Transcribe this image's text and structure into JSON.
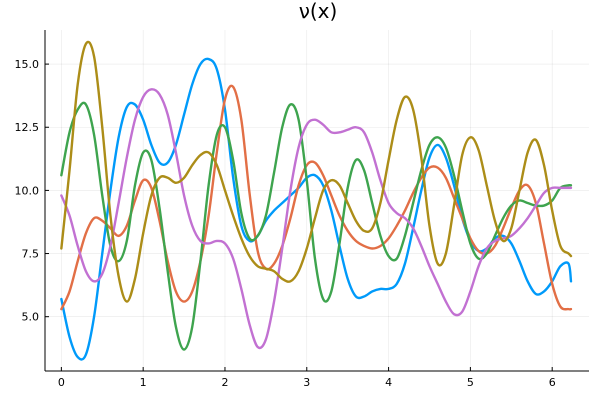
{
  "chart_data": {
    "type": "line",
    "title": "ν(x)",
    "xlabel": "",
    "ylabel": "",
    "xlim": [
      -0.2,
      6.45
    ],
    "ylim": [
      2.85,
      16.35
    ],
    "xticks": [
      0,
      1,
      2,
      3,
      4,
      5,
      6
    ],
    "xtick_labels": [
      "0",
      "1",
      "2",
      "3",
      "4",
      "5",
      "6"
    ],
    "yticks": [
      5.0,
      7.5,
      10.0,
      12.5,
      15.0
    ],
    "ytick_labels": [
      "5.0",
      "7.5",
      "10.0",
      "12.5",
      "15.0"
    ],
    "grid": true,
    "legend": "none",
    "series": [
      {
        "color": "#009AFA",
        "x": [
          0,
          0.1,
          0.2,
          0.3,
          0.4,
          0.5,
          0.6,
          0.7,
          0.8,
          0.9,
          1.0,
          1.1,
          1.2,
          1.3,
          1.4,
          1.5,
          1.6,
          1.7,
          1.8,
          1.9,
          2.0,
          2.1,
          2.2,
          2.3,
          2.4,
          2.5,
          2.6,
          2.7,
          2.8,
          2.9,
          3.0,
          3.1,
          3.2,
          3.3,
          3.4,
          3.5,
          3.6,
          3.7,
          3.8,
          3.9,
          4.0,
          4.1,
          4.2,
          4.3,
          4.4,
          4.5,
          4.6,
          4.7,
          4.8,
          4.9,
          5.0,
          5.1,
          5.2,
          5.3,
          5.4,
          5.5,
          5.6,
          5.7,
          5.8,
          5.9,
          6.0,
          6.1,
          6.2,
          6.23
        ],
        "y": [
          5.7,
          4.2,
          3.4,
          3.5,
          5.0,
          7.5,
          10.0,
          12.1,
          13.3,
          13.4,
          12.8,
          11.8,
          11.1,
          11.1,
          11.8,
          13.0,
          14.2,
          15.0,
          15.2,
          14.8,
          13.2,
          10.5,
          8.6,
          8.0,
          8.2,
          8.8,
          9.2,
          9.5,
          9.8,
          10.1,
          10.5,
          10.6,
          10.2,
          9.2,
          7.8,
          6.5,
          5.8,
          5.8,
          6.0,
          6.1,
          6.1,
          6.3,
          7.1,
          8.5,
          10.0,
          11.3,
          11.8,
          11.3,
          10.2,
          8.9,
          8.0,
          7.6,
          7.7,
          8.1,
          8.2,
          7.9,
          7.2,
          6.4,
          5.9,
          6.0,
          6.4,
          7.0,
          7.1,
          6.4
        ]
      },
      {
        "color": "#E26F46",
        "x": [
          0,
          0.1,
          0.2,
          0.3,
          0.4,
          0.5,
          0.6,
          0.7,
          0.8,
          0.9,
          1.0,
          1.1,
          1.2,
          1.3,
          1.4,
          1.5,
          1.6,
          1.7,
          1.8,
          1.9,
          2.0,
          2.1,
          2.2,
          2.3,
          2.4,
          2.5,
          2.6,
          2.7,
          2.8,
          2.9,
          3.0,
          3.1,
          3.2,
          3.3,
          3.4,
          3.5,
          3.6,
          3.7,
          3.8,
          3.9,
          4.0,
          4.1,
          4.2,
          4.3,
          4.4,
          4.5,
          4.6,
          4.7,
          4.8,
          4.9,
          5.0,
          5.1,
          5.2,
          5.3,
          5.4,
          5.5,
          5.6,
          5.7,
          5.8,
          5.9,
          6.0,
          6.1,
          6.2,
          6.23
        ],
        "y": [
          5.3,
          6.0,
          7.2,
          8.3,
          8.9,
          8.8,
          8.5,
          8.2,
          8.6,
          9.6,
          10.4,
          10.1,
          8.8,
          7.2,
          6.0,
          5.6,
          6.0,
          7.2,
          9.0,
          11.5,
          13.6,
          14.1,
          12.8,
          9.9,
          7.6,
          6.9,
          7.1,
          7.8,
          8.9,
          10.2,
          11.0,
          11.1,
          10.6,
          9.8,
          9.0,
          8.4,
          8.0,
          7.8,
          7.7,
          7.8,
          8.1,
          8.6,
          9.2,
          9.9,
          10.5,
          10.9,
          10.9,
          10.5,
          9.7,
          8.9,
          8.1,
          7.6,
          7.5,
          7.8,
          8.5,
          9.3,
          10.0,
          10.2,
          9.5,
          7.9,
          6.3,
          5.4,
          5.3,
          5.3
        ]
      },
      {
        "color": "#3EA44E",
        "x": [
          0,
          0.1,
          0.2,
          0.3,
          0.4,
          0.5,
          0.6,
          0.7,
          0.8,
          0.9,
          1.0,
          1.1,
          1.2,
          1.3,
          1.4,
          1.5,
          1.6,
          1.7,
          1.8,
          1.9,
          2.0,
          2.1,
          2.2,
          2.3,
          2.4,
          2.5,
          2.6,
          2.7,
          2.8,
          2.9,
          3.0,
          3.1,
          3.2,
          3.3,
          3.4,
          3.5,
          3.6,
          3.7,
          3.8,
          3.9,
          4.0,
          4.1,
          4.2,
          4.3,
          4.4,
          4.5,
          4.6,
          4.7,
          4.8,
          4.9,
          5.0,
          5.1,
          5.2,
          5.3,
          5.4,
          5.5,
          5.6,
          5.7,
          5.8,
          5.9,
          6.0,
          6.1,
          6.2,
          6.23
        ],
        "y": [
          10.6,
          12.3,
          13.2,
          13.4,
          12.2,
          9.8,
          7.8,
          7.2,
          8.0,
          10.2,
          11.5,
          11.2,
          9.3,
          6.8,
          4.6,
          3.7,
          4.6,
          7.2,
          10.2,
          12.2,
          12.5,
          11.2,
          9.1,
          8.1,
          8.2,
          9.0,
          10.7,
          12.5,
          13.4,
          12.8,
          10.4,
          7.3,
          5.7,
          6.0,
          7.9,
          10.1,
          11.2,
          10.8,
          9.5,
          8.2,
          7.4,
          7.3,
          8.2,
          9.5,
          10.8,
          11.8,
          12.1,
          11.7,
          10.6,
          9.2,
          7.9,
          7.3,
          7.5,
          8.2,
          8.9,
          9.4,
          9.6,
          9.5,
          9.4,
          9.4,
          9.6,
          10.1,
          10.2,
          10.2
        ]
      },
      {
        "color": "#C271D2",
        "x": [
          0,
          0.1,
          0.2,
          0.3,
          0.4,
          0.5,
          0.6,
          0.7,
          0.8,
          0.9,
          1.0,
          1.1,
          1.2,
          1.3,
          1.4,
          1.5,
          1.6,
          1.7,
          1.8,
          1.9,
          2.0,
          2.1,
          2.2,
          2.3,
          2.4,
          2.5,
          2.6,
          2.7,
          2.8,
          2.9,
          3.0,
          3.1,
          3.2,
          3.3,
          3.4,
          3.5,
          3.6,
          3.7,
          3.8,
          3.9,
          4.0,
          4.1,
          4.2,
          4.3,
          4.4,
          4.5,
          4.6,
          4.7,
          4.8,
          4.9,
          5.0,
          5.1,
          5.2,
          5.3,
          5.4,
          5.5,
          5.6,
          5.7,
          5.8,
          5.9,
          6.0,
          6.1,
          6.2,
          6.23
        ],
        "y": [
          9.8,
          9.0,
          7.8,
          6.8,
          6.4,
          6.7,
          7.8,
          9.5,
          11.3,
          12.8,
          13.7,
          14.0,
          13.8,
          13.0,
          11.5,
          9.8,
          8.6,
          8.0,
          7.9,
          8.0,
          7.9,
          7.3,
          6.1,
          4.7,
          3.8,
          4.1,
          5.6,
          7.7,
          10.0,
          11.7,
          12.6,
          12.8,
          12.6,
          12.3,
          12.3,
          12.4,
          12.5,
          12.3,
          11.5,
          10.4,
          9.5,
          9.1,
          8.9,
          8.5,
          7.8,
          7.0,
          6.3,
          5.6,
          5.1,
          5.2,
          6.0,
          7.0,
          7.7,
          8.0,
          8.1,
          8.2,
          8.5,
          8.9,
          9.4,
          9.9,
          10.1,
          10.1,
          10.1,
          10.1
        ]
      },
      {
        "color": "#AC8D18",
        "x": [
          0,
          0.1,
          0.2,
          0.3,
          0.4,
          0.5,
          0.6,
          0.7,
          0.8,
          0.9,
          1.0,
          1.1,
          1.2,
          1.3,
          1.4,
          1.5,
          1.6,
          1.7,
          1.8,
          1.9,
          2.0,
          2.1,
          2.2,
          2.3,
          2.4,
          2.5,
          2.6,
          2.7,
          2.8,
          2.9,
          3.0,
          3.1,
          3.2,
          3.3,
          3.4,
          3.5,
          3.6,
          3.7,
          3.8,
          3.9,
          4.0,
          4.1,
          4.2,
          4.3,
          4.4,
          4.5,
          4.6,
          4.7,
          4.8,
          4.9,
          5.0,
          5.1,
          5.2,
          5.3,
          5.4,
          5.5,
          5.6,
          5.7,
          5.8,
          5.9,
          6.0,
          6.1,
          6.2,
          6.23
        ],
        "y": [
          7.7,
          10.8,
          14.2,
          15.8,
          15.3,
          12.5,
          9.0,
          6.6,
          5.6,
          6.5,
          8.3,
          9.8,
          10.5,
          10.5,
          10.3,
          10.5,
          11.0,
          11.4,
          11.5,
          11.0,
          10.0,
          9.0,
          8.1,
          7.4,
          7.0,
          6.9,
          6.8,
          6.5,
          6.4,
          6.8,
          7.7,
          8.9,
          10.0,
          10.4,
          10.2,
          9.5,
          8.8,
          8.4,
          8.5,
          9.5,
          11.2,
          12.8,
          13.7,
          13.2,
          11.3,
          8.6,
          7.1,
          7.5,
          9.4,
          11.4,
          12.1,
          11.6,
          10.2,
          8.8,
          8.0,
          8.5,
          10.0,
          11.5,
          12.0,
          11.0,
          9.2,
          7.8,
          7.5,
          7.4
        ]
      }
    ]
  }
}
